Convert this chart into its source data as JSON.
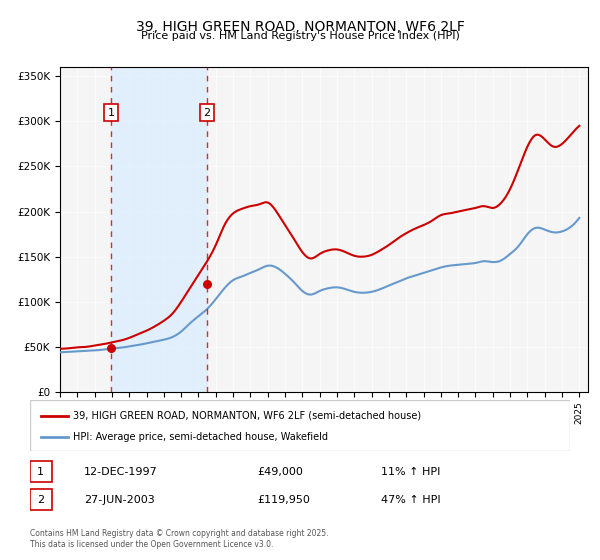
{
  "title": "39, HIGH GREEN ROAD, NORMANTON, WF6 2LF",
  "subtitle": "Price paid vs. HM Land Registry's House Price Index (HPI)",
  "legend_line1": "39, HIGH GREEN ROAD, NORMANTON, WF6 2LF (semi-detached house)",
  "legend_line2": "HPI: Average price, semi-detached house, Wakefield",
  "sale1_date": "12-DEC-1997",
  "sale1_price": 49000,
  "sale1_label": "11% ↑ HPI",
  "sale2_date": "27-JUN-2003",
  "sale2_price": 119950,
  "sale2_label": "47% ↑ HPI",
  "footer": "Contains HM Land Registry data © Crown copyright and database right 2025.\nThis data is licensed under the Open Government Licence v3.0.",
  "red_color": "#cc0000",
  "blue_color": "#6699cc",
  "shade_color": "#ddeeff",
  "background_color": "#f5f5f5",
  "ylim": [
    0,
    360000
  ],
  "yticks": [
    0,
    50000,
    100000,
    150000,
    200000,
    250000,
    300000,
    350000
  ],
  "xlim_start": 1995.0,
  "xlim_end": 2025.5,
  "sale1_x": 1997.958,
  "sale2_x": 2003.493,
  "hpi_data": {
    "years": [
      1995.0,
      1995.5,
      1996.0,
      1996.5,
      1997.0,
      1997.5,
      1998.0,
      1998.5,
      1999.0,
      1999.5,
      2000.0,
      2000.5,
      2001.0,
      2001.5,
      2002.0,
      2002.5,
      2003.0,
      2003.5,
      2004.0,
      2004.5,
      2005.0,
      2005.5,
      2006.0,
      2006.5,
      2007.0,
      2007.5,
      2008.0,
      2008.5,
      2009.0,
      2009.5,
      2010.0,
      2010.5,
      2011.0,
      2011.5,
      2012.0,
      2012.5,
      2013.0,
      2013.5,
      2014.0,
      2014.5,
      2015.0,
      2015.5,
      2016.0,
      2016.5,
      2017.0,
      2017.5,
      2018.0,
      2018.5,
      2019.0,
      2019.5,
      2020.0,
      2020.5,
      2021.0,
      2021.5,
      2022.0,
      2022.5,
      2023.0,
      2023.5,
      2024.0,
      2024.5,
      2025.0
    ],
    "values": [
      44000,
      44500,
      45000,
      45500,
      46000,
      47000,
      48000,
      49000,
      50500,
      52000,
      54000,
      56000,
      58000,
      61000,
      67000,
      76000,
      84000,
      92000,
      103000,
      115000,
      124000,
      128000,
      132000,
      136000,
      140000,
      138000,
      131000,
      122000,
      112000,
      108000,
      112000,
      115000,
      116000,
      114000,
      111000,
      110000,
      111000,
      114000,
      118000,
      122000,
      126000,
      129000,
      132000,
      135000,
      138000,
      140000,
      141000,
      142000,
      143000,
      145000,
      144000,
      146000,
      153000,
      162000,
      175000,
      182000,
      180000,
      177000,
      178000,
      183000,
      193000
    ]
  },
  "hpi_prop_data": {
    "years": [
      1995.0,
      1995.5,
      1996.0,
      1996.5,
      1997.0,
      1997.5,
      1998.0,
      1998.5,
      1999.0,
      1999.5,
      2000.0,
      2000.5,
      2001.0,
      2001.5,
      2002.0,
      2002.5,
      2003.0,
      2003.5,
      2004.0,
      2004.5,
      2005.0,
      2005.5,
      2006.0,
      2006.5,
      2007.0,
      2007.5,
      2008.0,
      2008.5,
      2009.0,
      2009.5,
      2010.0,
      2010.5,
      2011.0,
      2011.5,
      2012.0,
      2012.5,
      2013.0,
      2013.5,
      2014.0,
      2014.5,
      2015.0,
      2015.5,
      2016.0,
      2016.5,
      2017.0,
      2017.5,
      2018.0,
      2018.5,
      2019.0,
      2019.5,
      2020.0,
      2020.5,
      2021.0,
      2021.5,
      2022.0,
      2022.5,
      2023.0,
      2023.5,
      2024.0,
      2024.5,
      2025.0
    ],
    "values": [
      48000,
      48500,
      49500,
      50000,
      51500,
      53000,
      55000,
      57000,
      60000,
      64000,
      68000,
      73000,
      79000,
      87000,
      100000,
      115000,
      130000,
      145000,
      163000,
      185000,
      198000,
      203000,
      206000,
      208000,
      210000,
      200000,
      185000,
      170000,
      155000,
      148000,
      153000,
      157000,
      158000,
      155000,
      151000,
      150000,
      152000,
      157000,
      163000,
      170000,
      176000,
      181000,
      185000,
      190000,
      196000,
      198000,
      200000,
      202000,
      204000,
      206000,
      204000,
      210000,
      225000,
      248000,
      272000,
      285000,
      280000,
      272000,
      275000,
      285000,
      295000
    ]
  }
}
